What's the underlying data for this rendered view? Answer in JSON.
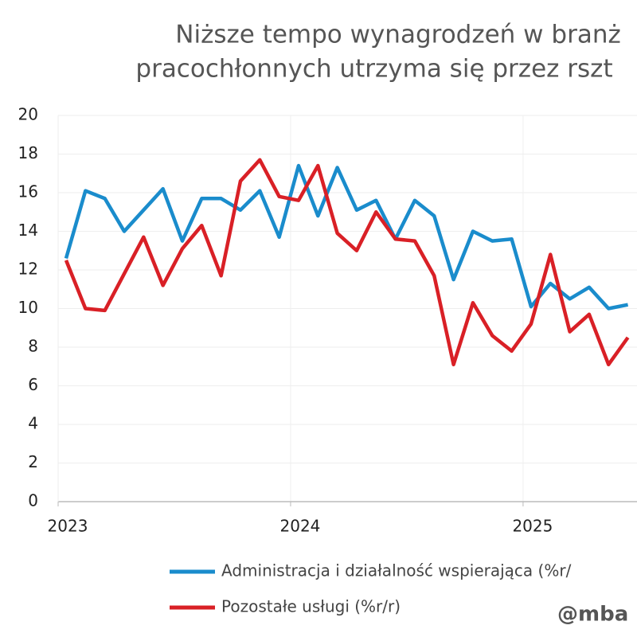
{
  "chart_data": {
    "type": "line",
    "title": [
      "Niższe tempo wynagrodzeń w branż",
      "pracochłonnych utrzyma się przez rszt"
    ],
    "categories": [
      "2023",
      null,
      null,
      null,
      null,
      null,
      null,
      null,
      null,
      null,
      null,
      null,
      "2024",
      null,
      null,
      null,
      null,
      null,
      null,
      null,
      null,
      null,
      null,
      null,
      "2025",
      null,
      null,
      null,
      null,
      null
    ],
    "series": [
      {
        "name": "Administracja i działalność wspierająca (%r/",
        "color": "#1a8ccc",
        "values": [
          12.6,
          16.1,
          15.7,
          14.0,
          15.1,
          16.2,
          13.5,
          15.7,
          15.7,
          15.1,
          16.1,
          13.7,
          17.4,
          14.8,
          17.3,
          15.1,
          15.6,
          13.6,
          15.6,
          14.8,
          11.5,
          14.0,
          13.5,
          13.6,
          10.1,
          11.3,
          10.5,
          11.1,
          10.0,
          10.2
        ]
      },
      {
        "name": "Pozostałe usługi (%r/r)",
        "color": "#d92026",
        "values": [
          12.5,
          10.0,
          9.9,
          11.8,
          13.7,
          11.2,
          13.1,
          14.3,
          11.7,
          16.6,
          17.7,
          15.8,
          15.6,
          17.4,
          13.9,
          13.0,
          15.0,
          13.6,
          13.5,
          11.7,
          7.1,
          10.3,
          8.6,
          7.8,
          9.2,
          12.8,
          8.8,
          9.7,
          7.1,
          8.5
        ]
      }
    ],
    "ylim": [
      0,
      20
    ],
    "yticks": [
      0,
      2,
      4,
      6,
      8,
      10,
      12,
      14,
      16,
      18,
      20
    ],
    "grid": true,
    "watermark": "@mba"
  }
}
